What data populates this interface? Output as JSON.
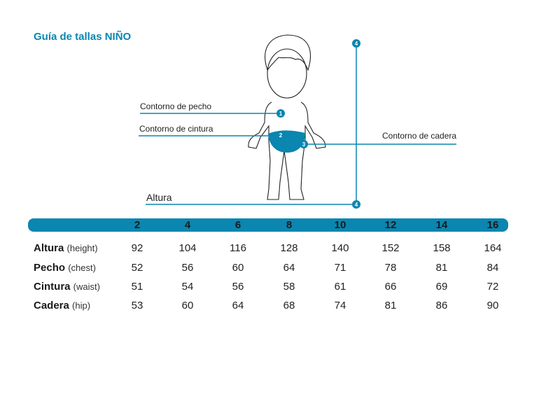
{
  "title": "Guía de tallas NIÑO",
  "figure": {
    "labels": {
      "chest": "Contorno de pecho",
      "waist": "Contorno de cintura",
      "hip": "Contorno de cadera",
      "height": "Altura"
    },
    "markers": [
      "1",
      "2",
      "3",
      "4",
      "4"
    ],
    "accent_color": "#0a86b0"
  },
  "table": {
    "sizes": [
      "2",
      "4",
      "6",
      "8",
      "10",
      "12",
      "14",
      "16"
    ],
    "rows": [
      {
        "label": "Altura",
        "sub": "(height)",
        "values": [
          "92",
          "104",
          "116",
          "128",
          "140",
          "152",
          "158",
          "164"
        ]
      },
      {
        "label": "Pecho",
        "sub": "(chest)",
        "values": [
          "52",
          "56",
          "60",
          "64",
          "71",
          "78",
          "81",
          "84"
        ]
      },
      {
        "label": "Cintura",
        "sub": "(waist)",
        "values": [
          "51",
          "54",
          "56",
          "58",
          "61",
          "66",
          "69",
          "72"
        ]
      },
      {
        "label": "Cadera",
        "sub": "(hip)",
        "values": [
          "53",
          "60",
          "64",
          "68",
          "74",
          "81",
          "86",
          "90"
        ]
      }
    ]
  }
}
